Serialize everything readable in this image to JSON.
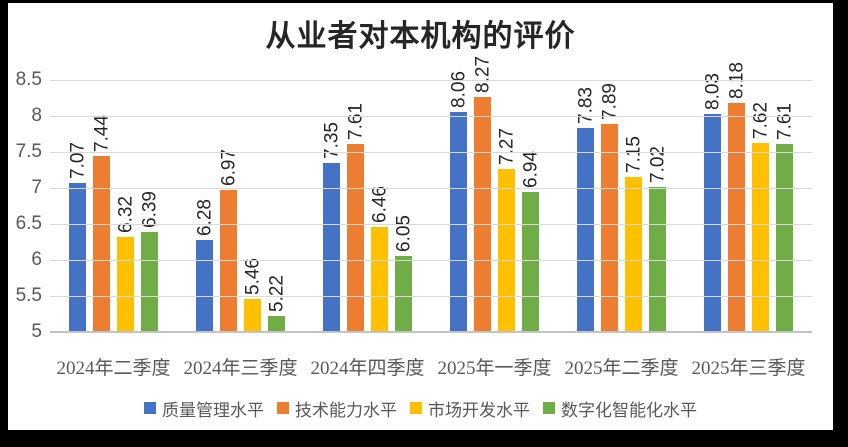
{
  "chart_data": {
    "type": "bar",
    "title": "从业者对本机构的评价",
    "categories": [
      "2024年二季度",
      "2024年三季度",
      "2024年四季度",
      "2025年一季度",
      "2025年二季度",
      "2025年三季度"
    ],
    "series": [
      {
        "name": "质量管理水平",
        "color": "#4472C4",
        "values": [
          7.07,
          6.28,
          7.35,
          8.06,
          7.83,
          8.03
        ]
      },
      {
        "name": "技术能力水平",
        "color": "#ED7D31",
        "values": [
          7.44,
          6.97,
          7.61,
          8.27,
          7.89,
          8.18
        ]
      },
      {
        "name": "市场开发水平",
        "color": "#FFC000",
        "values": [
          6.32,
          5.46,
          6.46,
          7.27,
          7.15,
          7.62
        ]
      },
      {
        "name": "数字化智能化水平",
        "color": "#70AD47",
        "values": [
          6.39,
          5.22,
          6.05,
          6.94,
          7.02,
          7.61
        ]
      }
    ],
    "ylim": [
      5,
      8.5
    ],
    "yticks": [
      "5",
      "5.5",
      "6",
      "6.5",
      "7",
      "7.5",
      "8",
      "8.5"
    ],
    "grid": true,
    "legend_position": "bottom",
    "data_labels": true,
    "data_label_rotation": -90,
    "data_label_decimals": 2
  },
  "colors": {
    "frame_background": "#000000",
    "chart_background": "#FFFFFF",
    "gridline": "#D9D9D9",
    "axis_text": "#595959",
    "title_text": "#262626",
    "data_label_text": "#262626"
  }
}
